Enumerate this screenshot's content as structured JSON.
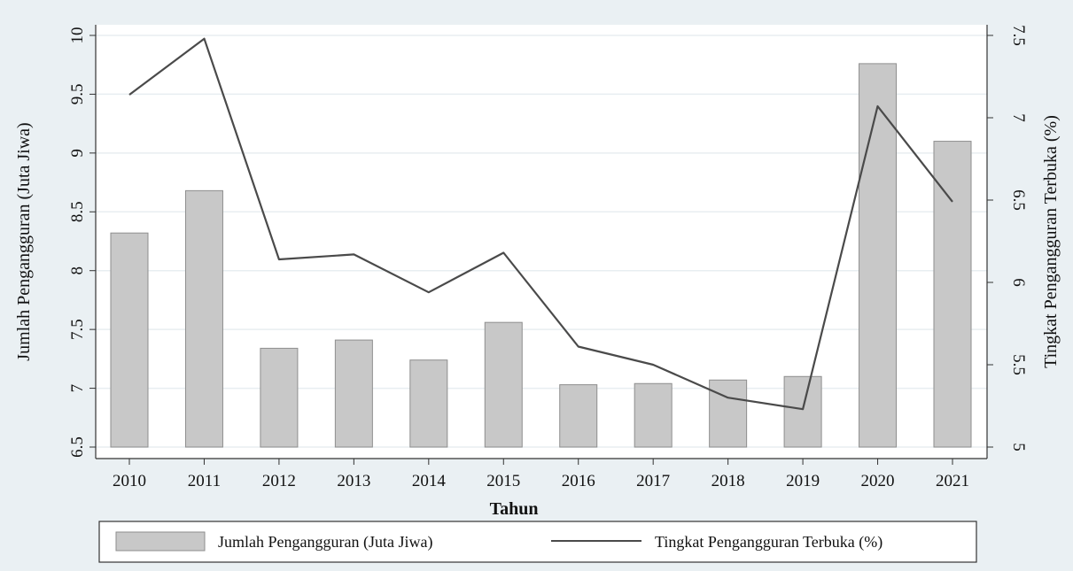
{
  "chart_data": {
    "type": "bar",
    "categories": [
      "2010",
      "2011",
      "2012",
      "2013",
      "2014",
      "2015",
      "2016",
      "2017",
      "2018",
      "2019",
      "2020",
      "2021"
    ],
    "series": [
      {
        "name": "Jumlah Pengangguran (Juta Jiwa)",
        "type": "bar",
        "axis": "left",
        "values": [
          8.32,
          8.68,
          7.34,
          7.41,
          7.24,
          7.56,
          7.03,
          7.04,
          7.07,
          7.1,
          9.76,
          9.1
        ]
      },
      {
        "name": "Tingkat Pengangguran Terbuka (%)",
        "type": "line",
        "axis": "right",
        "values": [
          7.14,
          7.48,
          6.14,
          6.17,
          5.94,
          6.18,
          5.61,
          5.5,
          5.3,
          5.23,
          7.07,
          6.49
        ]
      }
    ],
    "xlabel": "Tahun",
    "ylabel": "Jumlah Pengangguran (Juta Jiwa)",
    "y2label": "Tingkat Pengangguran Terbuka (%)",
    "ylim": [
      6.5,
      10
    ],
    "y2lim": [
      5,
      7.5
    ],
    "yticks": [
      "6.5",
      "7",
      "7.5",
      "8",
      "8.5",
      "9",
      "9.5",
      "10"
    ],
    "y2ticks": [
      "5",
      "5.5",
      "6",
      "6.5",
      "7",
      "7.5"
    ],
    "grid": true,
    "legend_position": "bottom",
    "colors": {
      "bar_fill": "#c8c8c8",
      "bar_stroke": "#8e8e8e",
      "line": "#4a4a4a",
      "background": "#eaf0f3",
      "plot_background": "#ffffff",
      "grid": "#e8eef1"
    }
  }
}
